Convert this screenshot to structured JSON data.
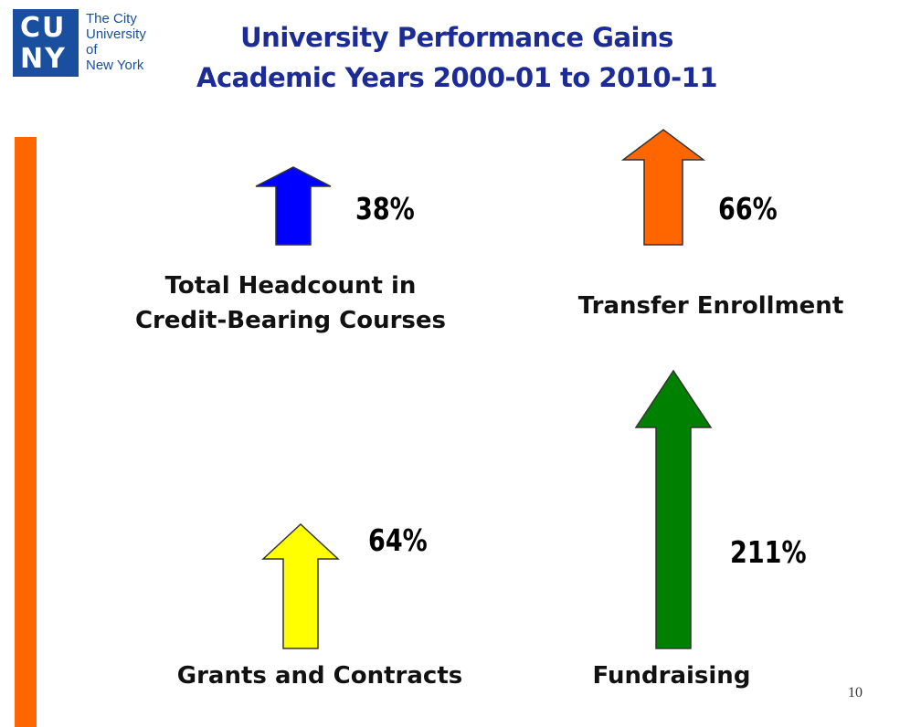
{
  "logo": {
    "mark_line1": "CU",
    "mark_line2": "NY",
    "text_lines": [
      "The City",
      "University",
      "of",
      "New York"
    ],
    "color": "#1a4fa0"
  },
  "title": {
    "line1": "University Performance Gains",
    "line2": "Academic Years 2000-01 to 2010-11"
  },
  "metrics": [
    {
      "label_lines": [
        "Total Headcount in",
        "Credit-Bearing Courses"
      ],
      "value": "38%",
      "arrow_color": "#0000ff"
    },
    {
      "label_lines": [
        "Transfer Enrollment"
      ],
      "value": "66%",
      "arrow_color": "#ff6600"
    },
    {
      "label_lines": [
        "Grants and Contracts"
      ],
      "value": "64%",
      "arrow_color": "#ffff00"
    },
    {
      "label_lines": [
        "Fundraising"
      ],
      "value": "211%",
      "arrow_color": "#008000"
    }
  ],
  "accent_color": "#ff6600",
  "page_number": "10"
}
